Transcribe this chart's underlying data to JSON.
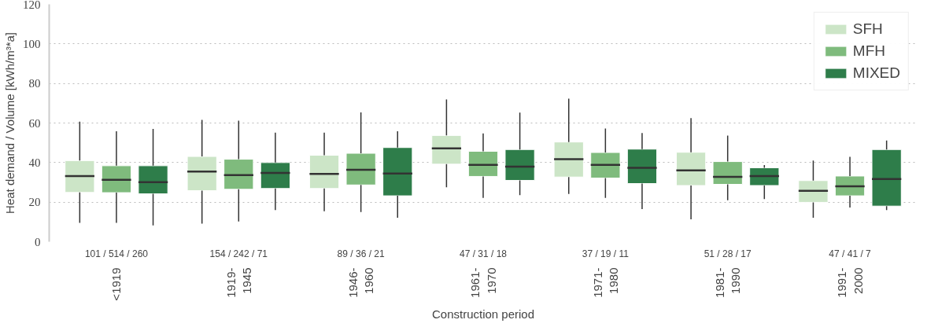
{
  "chart_data": {
    "type": "box",
    "xlabel": "Construction period",
    "ylabel": "Heat demand / Volume [kWh/m³*a]",
    "categories": [
      "<1919",
      "1919-1945",
      "1946-1960",
      "1961-1970",
      "1971-1980",
      "1981-1990",
      "1991-2000"
    ],
    "ylim": [
      0,
      120
    ],
    "yticks": [
      0,
      20,
      40,
      60,
      80,
      100,
      120
    ],
    "grid": "y",
    "legend": "top right",
    "annotations": [
      "101 / 514 / 260",
      "154 / 242 / 71",
      "89 / 36 / 21",
      "47 / 31 / 18",
      "37 / 19 / 11",
      "51 / 28 / 17",
      "47 / 41 / 7"
    ],
    "series": [
      {
        "name": "SFH",
        "color": "#cce5c7",
        "boxes": [
          {
            "low": 9.5,
            "q1": 24.9,
            "median": 33.2,
            "q3": 41,
            "high": 60.7
          },
          {
            "low": 9.1,
            "q1": 25.8,
            "median": 35.5,
            "q3": 43.1,
            "high": 61.6
          },
          {
            "low": 15.4,
            "q1": 26.9,
            "median": 34.3,
            "q3": 43.7,
            "high": 55.1
          },
          {
            "low": 27.5,
            "q1": 39.2,
            "median": 47.2,
            "q3": 53.7,
            "high": 71.9
          },
          {
            "low": 24.1,
            "q1": 32.7,
            "median": 41.7,
            "q3": 50.4,
            "high": 72.3
          },
          {
            "low": 11.3,
            "q1": 28.4,
            "median": 36.1,
            "q3": 45.2,
            "high": 62.5
          },
          {
            "low": 12.1,
            "q1": 19.9,
            "median": 25.7,
            "q3": 30.9,
            "high": 41
          }
        ]
      },
      {
        "name": "MFH",
        "color": "#7fbb7d",
        "boxes": [
          {
            "low": 9.5,
            "q1": 24.8,
            "median": 31.3,
            "q3": 38.4,
            "high": 55.8
          },
          {
            "low": 10.2,
            "q1": 26.5,
            "median": 33.7,
            "q3": 41.7,
            "high": 61.2
          },
          {
            "low": 15,
            "q1": 28.7,
            "median": 36.4,
            "q3": 44.7,
            "high": 65.4
          },
          {
            "low": 22.2,
            "q1": 33,
            "median": 38.8,
            "q3": 45.7,
            "high": 54.7
          },
          {
            "low": 22.2,
            "q1": 32.2,
            "median": 38.8,
            "q3": 45.1,
            "high": 57.2
          },
          {
            "low": 21,
            "q1": 29,
            "median": 32.8,
            "q3": 40.5,
            "high": 53.6
          },
          {
            "low": 17.3,
            "q1": 23.2,
            "median": 28,
            "q3": 33.2,
            "high": 42.9
          }
        ]
      },
      {
        "name": "MIXED",
        "color": "#2e7d4a",
        "boxes": [
          {
            "low": 8.2,
            "q1": 24.2,
            "median": 30.1,
            "q3": 38.4,
            "high": 57
          },
          {
            "low": 16,
            "q1": 26.9,
            "median": 34.8,
            "q3": 40,
            "high": 55.1
          },
          {
            "low": 12.1,
            "q1": 23.2,
            "median": 34.5,
            "q3": 47.6,
            "high": 55.8
          },
          {
            "low": 23.5,
            "q1": 31,
            "median": 37.9,
            "q3": 46.6,
            "high": 65.3
          },
          {
            "low": 16.5,
            "q1": 29.4,
            "median": 37.4,
            "q3": 46.8,
            "high": 54.9
          },
          {
            "low": 21.6,
            "q1": 28.4,
            "median": 33.2,
            "q3": 37.4,
            "high": 38.7
          },
          {
            "low": 16,
            "q1": 18,
            "median": 31.7,
            "q3": 46.6,
            "high": 51.2
          }
        ]
      }
    ]
  }
}
